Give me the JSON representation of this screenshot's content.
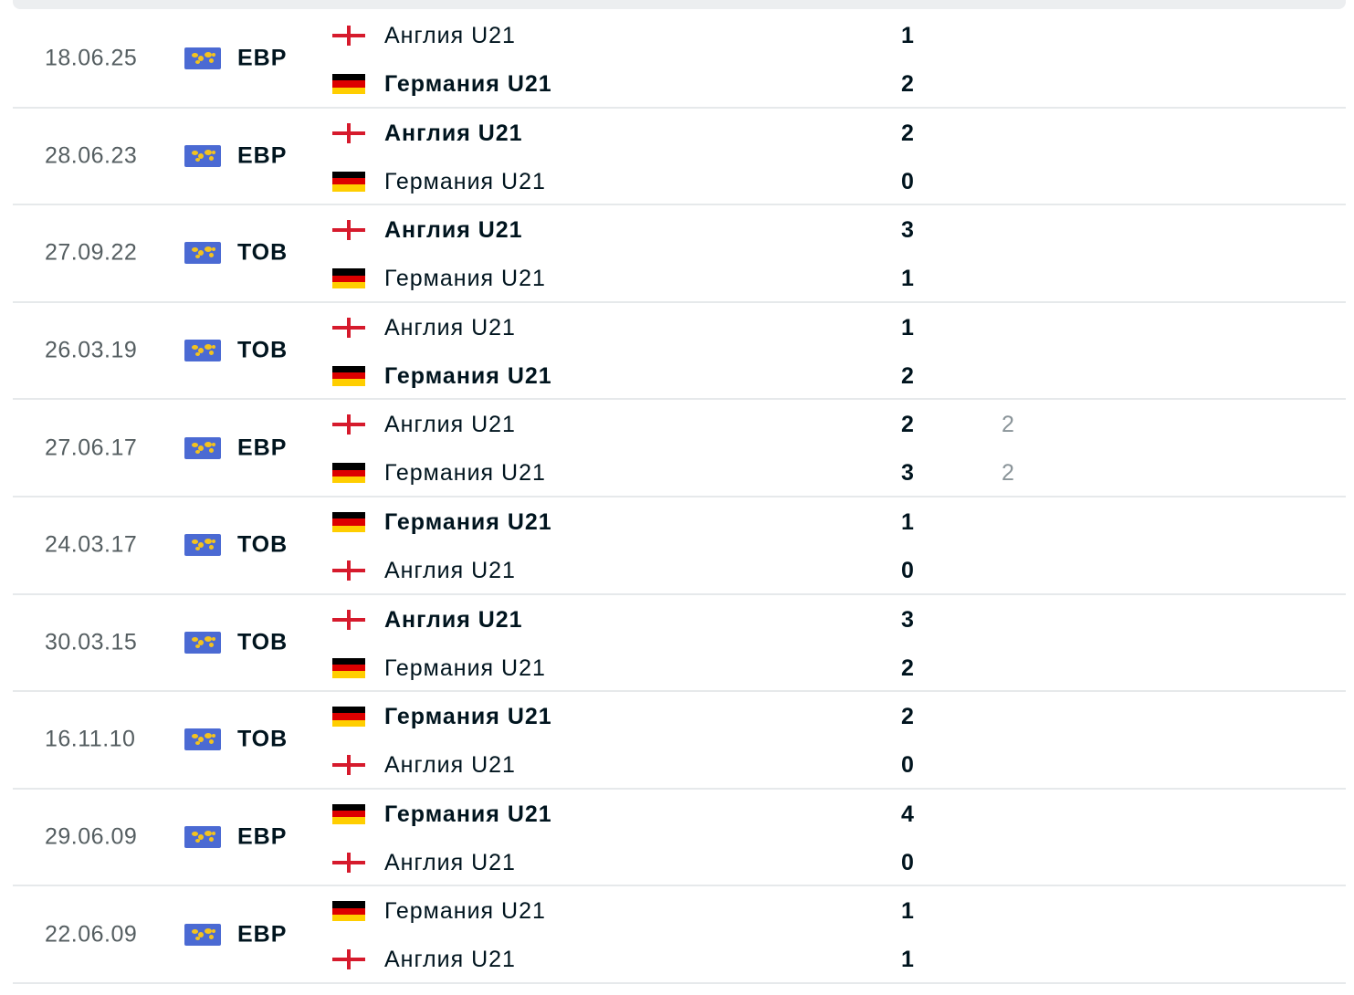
{
  "matches": [
    {
      "date": "18.06.25",
      "competition": "ЕВР",
      "team1": {
        "name": "Англия U21",
        "flag": "england",
        "score": "1",
        "extra": "",
        "winner": false
      },
      "team2": {
        "name": "Германия U21",
        "flag": "germany",
        "score": "2",
        "extra": "",
        "winner": true
      }
    },
    {
      "date": "28.06.23",
      "competition": "ЕВР",
      "team1": {
        "name": "Англия U21",
        "flag": "england",
        "score": "2",
        "extra": "",
        "winner": true
      },
      "team2": {
        "name": "Германия U21",
        "flag": "germany",
        "score": "0",
        "extra": "",
        "winner": false
      }
    },
    {
      "date": "27.09.22",
      "competition": "ТОВ",
      "team1": {
        "name": "Англия U21",
        "flag": "england",
        "score": "3",
        "extra": "",
        "winner": true
      },
      "team2": {
        "name": "Германия U21",
        "flag": "germany",
        "score": "1",
        "extra": "",
        "winner": false
      }
    },
    {
      "date": "26.03.19",
      "competition": "ТОВ",
      "team1": {
        "name": "Англия U21",
        "flag": "england",
        "score": "1",
        "extra": "",
        "winner": false
      },
      "team2": {
        "name": "Германия U21",
        "flag": "germany",
        "score": "2",
        "extra": "",
        "winner": true
      }
    },
    {
      "date": "27.06.17",
      "competition": "ЕВР",
      "team1": {
        "name": "Англия U21",
        "flag": "england",
        "score": "2",
        "extra": "2",
        "winner": false
      },
      "team2": {
        "name": "Германия U21",
        "flag": "germany",
        "score": "3",
        "extra": "2",
        "winner": false
      }
    },
    {
      "date": "24.03.17",
      "competition": "ТОВ",
      "team1": {
        "name": "Германия U21",
        "flag": "germany",
        "score": "1",
        "extra": "",
        "winner": true
      },
      "team2": {
        "name": "Англия U21",
        "flag": "england",
        "score": "0",
        "extra": "",
        "winner": false
      }
    },
    {
      "date": "30.03.15",
      "competition": "ТОВ",
      "team1": {
        "name": "Англия U21",
        "flag": "england",
        "score": "3",
        "extra": "",
        "winner": true
      },
      "team2": {
        "name": "Германия U21",
        "flag": "germany",
        "score": "2",
        "extra": "",
        "winner": false
      }
    },
    {
      "date": "16.11.10",
      "competition": "ТОВ",
      "team1": {
        "name": "Германия U21",
        "flag": "germany",
        "score": "2",
        "extra": "",
        "winner": true
      },
      "team2": {
        "name": "Англия U21",
        "flag": "england",
        "score": "0",
        "extra": "",
        "winner": false
      }
    },
    {
      "date": "29.06.09",
      "competition": "ЕВР",
      "team1": {
        "name": "Германия U21",
        "flag": "germany",
        "score": "4",
        "extra": "",
        "winner": true
      },
      "team2": {
        "name": "Англия U21",
        "flag": "england",
        "score": "0",
        "extra": "",
        "winner": false
      }
    },
    {
      "date": "22.06.09",
      "competition": "ЕВР",
      "team1": {
        "name": "Германия U21",
        "flag": "germany",
        "score": "1",
        "extra": "",
        "winner": false
      },
      "team2": {
        "name": "Англия U21",
        "flag": "england",
        "score": "1",
        "extra": "",
        "winner": false
      }
    }
  ],
  "icons": {
    "competition": "world-map-icon"
  },
  "colors": {
    "england_red": "#d61a2c",
    "germany_black": "#000000",
    "germany_red": "#dd0000",
    "germany_gold": "#ffce00",
    "comp_icon_bg": "#4b6ad3"
  }
}
